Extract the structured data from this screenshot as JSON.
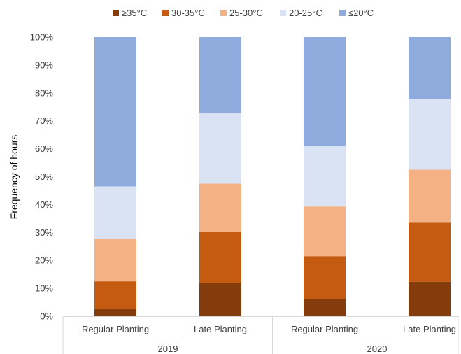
{
  "chart_data": {
    "type": "bar",
    "stacked": true,
    "percent_stacked": true,
    "ylabel": "Frequency of hours",
    "ylim": [
      0,
      100
    ],
    "ytick_labels": [
      "0%",
      "10%",
      "20%",
      "30%",
      "40%",
      "50%",
      "60%",
      "70%",
      "80%",
      "90%",
      "100%"
    ],
    "categories": [
      "Regular Planting",
      "Late Planting",
      "Regular Planting",
      "Late Planting"
    ],
    "groups": [
      {
        "label": "2019",
        "categories": [
          0,
          1
        ]
      },
      {
        "label": "2020",
        "categories": [
          2,
          3
        ]
      }
    ],
    "legend_position": "top",
    "grid": false,
    "series": [
      {
        "name": "≥35°C",
        "color": "#843C0C",
        "values": [
          2.5,
          11.8,
          6.2,
          12.3
        ]
      },
      {
        "name": "30-35°C",
        "color": "#C55A11",
        "values": [
          10.0,
          18.5,
          15.3,
          21.2
        ]
      },
      {
        "name": "25-30°C",
        "color": "#F4B183",
        "values": [
          15.2,
          17.2,
          17.8,
          19.0
        ]
      },
      {
        "name": "20-25°C",
        "color": "#DAE3F3",
        "values": [
          18.8,
          25.4,
          21.7,
          25.3
        ]
      },
      {
        "name": "≤20°C",
        "color": "#8FAADC",
        "values": [
          53.5,
          27.1,
          39.0,
          22.2
        ]
      }
    ]
  }
}
